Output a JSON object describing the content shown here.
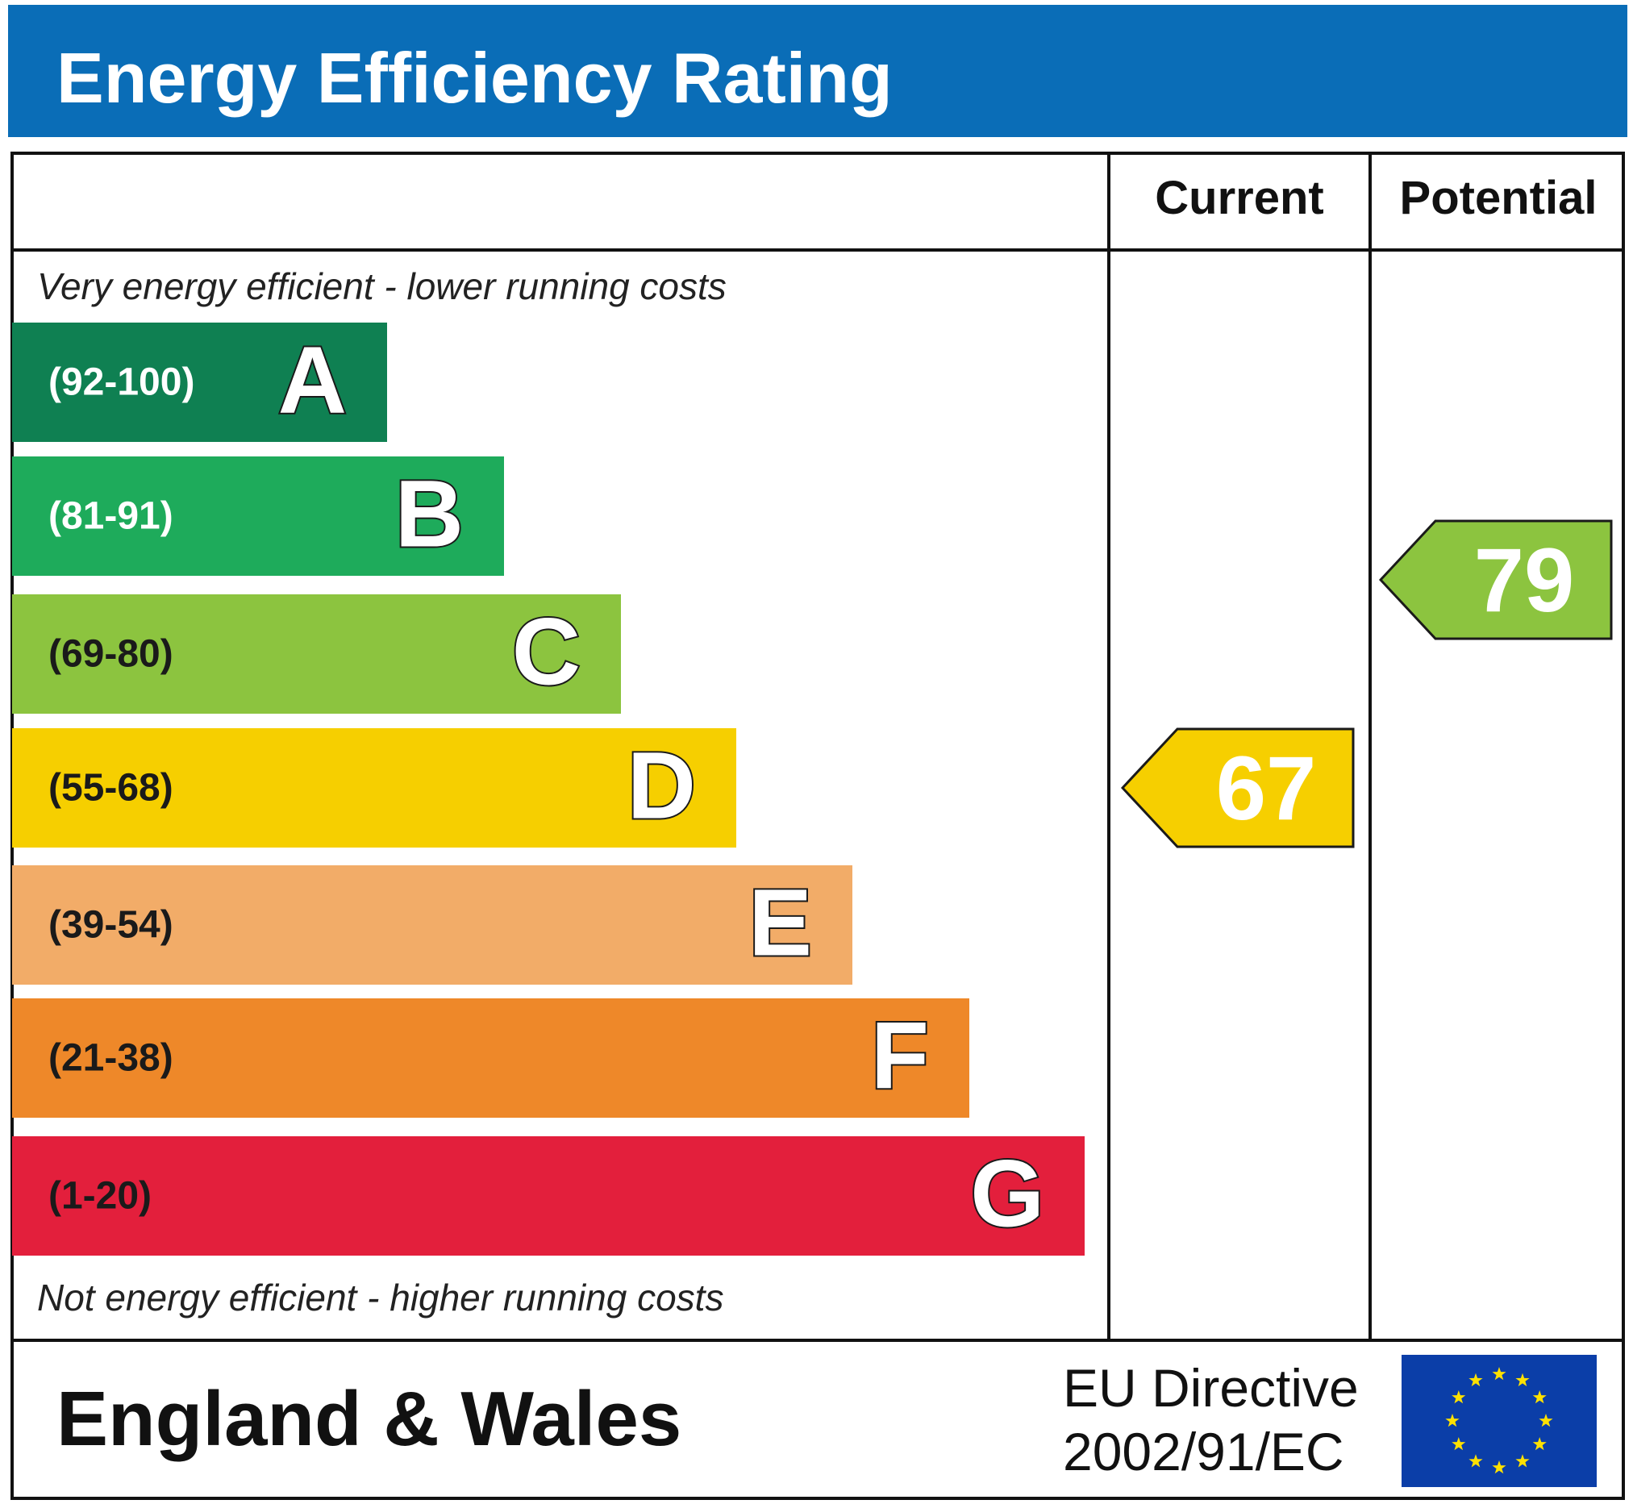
{
  "title": "Energy Efficiency Rating",
  "columns": {
    "current": "Current",
    "potential": "Potential"
  },
  "notes": {
    "top": "Very energy efficient - lower running costs",
    "bottom": "Not energy efficient - higher running costs"
  },
  "footer": {
    "region": "England & Wales",
    "directive_line1": "EU Directive",
    "directive_line2": "2002/91/EC"
  },
  "chart_data": {
    "type": "bar",
    "title": "Energy Efficiency Rating",
    "bands": [
      {
        "letter": "A",
        "range": "(92-100)",
        "min": 92,
        "max": 100,
        "color": "#0f8052",
        "text_color": "#ffffff"
      },
      {
        "letter": "B",
        "range": "(81-91)",
        "min": 81,
        "max": 91,
        "color": "#1eab5b",
        "text_color": "#ffffff"
      },
      {
        "letter": "C",
        "range": "(69-80)",
        "min": 69,
        "max": 80,
        "color": "#8cc43f",
        "text_color": "#1a1a1a"
      },
      {
        "letter": "D",
        "range": "(55-68)",
        "min": 55,
        "max": 68,
        "color": "#f6cf00",
        "text_color": "#1a1a1a"
      },
      {
        "letter": "E",
        "range": "(39-54)",
        "min": 39,
        "max": 54,
        "color": "#f2ac68",
        "text_color": "#1a1a1a"
      },
      {
        "letter": "F",
        "range": "(21-38)",
        "min": 21,
        "max": 38,
        "color": "#ee8829",
        "text_color": "#1a1a1a"
      },
      {
        "letter": "G",
        "range": "(1-20)",
        "min": 1,
        "max": 20,
        "color": "#e31f3c",
        "text_color": "#1a1a1a"
      }
    ],
    "current": {
      "value": 67,
      "band": "D",
      "color": "#f6cf00"
    },
    "potential": {
      "value": 79,
      "band": "C",
      "color": "#8cc43f"
    }
  }
}
